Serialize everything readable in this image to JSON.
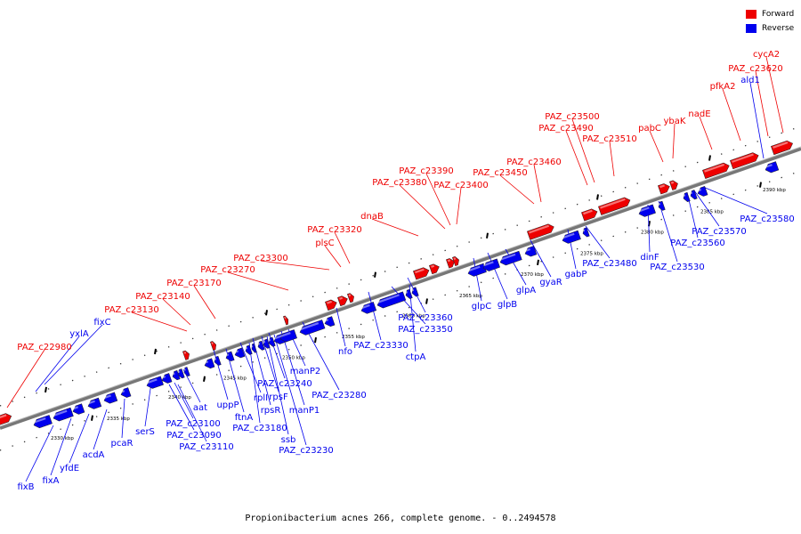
{
  "legend": [
    {
      "label": "Forward",
      "color": "#ee0000"
    },
    {
      "label": "Reverse",
      "color": "#0000ee"
    }
  ],
  "caption": "Propionibacterium acnes 266, complete genome. - 0..2494578",
  "colors": {
    "forward": "#ee0000",
    "reverse": "#0000ee",
    "backbone": "#888888"
  },
  "kbp_ticks": [
    "2330 kbp",
    "2335 kbp",
    "2340 kbp",
    "2345 kbp",
    "2350 kbp",
    "2355 kbp",
    "2360 kbp",
    "2365 kbp",
    "2370 kbp",
    "2375 kbp",
    "2380 kbp",
    "2385 kbp",
    "2390 kbp"
  ],
  "forward_labels": [
    "PAZ_c22980",
    "PAZ_c23130",
    "PAZ_c23140",
    "PAZ_c23170",
    "PAZ_c23270",
    "PAZ_c23300",
    "plsC",
    "PAZ_c23320",
    "dnaB",
    "PAZ_c23380",
    "PAZ_c23390",
    "PAZ_c23400",
    "PAZ_c23450",
    "PAZ_c23460",
    "PAZ_c23490",
    "PAZ_c23500",
    "PAZ_c23510",
    "pabC",
    "ybaK",
    "nadE",
    "pfkA2",
    "PAZ_c23620",
    "cycA2"
  ],
  "reverse_labels": [
    "fixB",
    "fixA",
    "yfdE",
    "acdA",
    "pcaR",
    "serS",
    "yxlA",
    "fixC",
    "PAZ_c23090",
    "PAZ_c23100",
    "PAZ_c23110",
    "aat",
    "uppP",
    "ftnA",
    "rplI",
    "rpsR",
    "rpsF",
    "PAZ_c23180",
    "ssb",
    "PAZ_c23230",
    "PAZ_c23240",
    "manP1",
    "manP2",
    "PAZ_c23280",
    "nfo",
    "PAZ_c23330",
    "PAZ_c23350",
    "PAZ_c23360",
    "ctpA",
    "glpC",
    "glpB",
    "glpA",
    "gyaR",
    "gabP",
    "PAZ_c23480",
    "dinF",
    "PAZ_c23530",
    "PAZ_c23560",
    "PAZ_c23570",
    "PAZ_c23580",
    "ald1"
  ]
}
